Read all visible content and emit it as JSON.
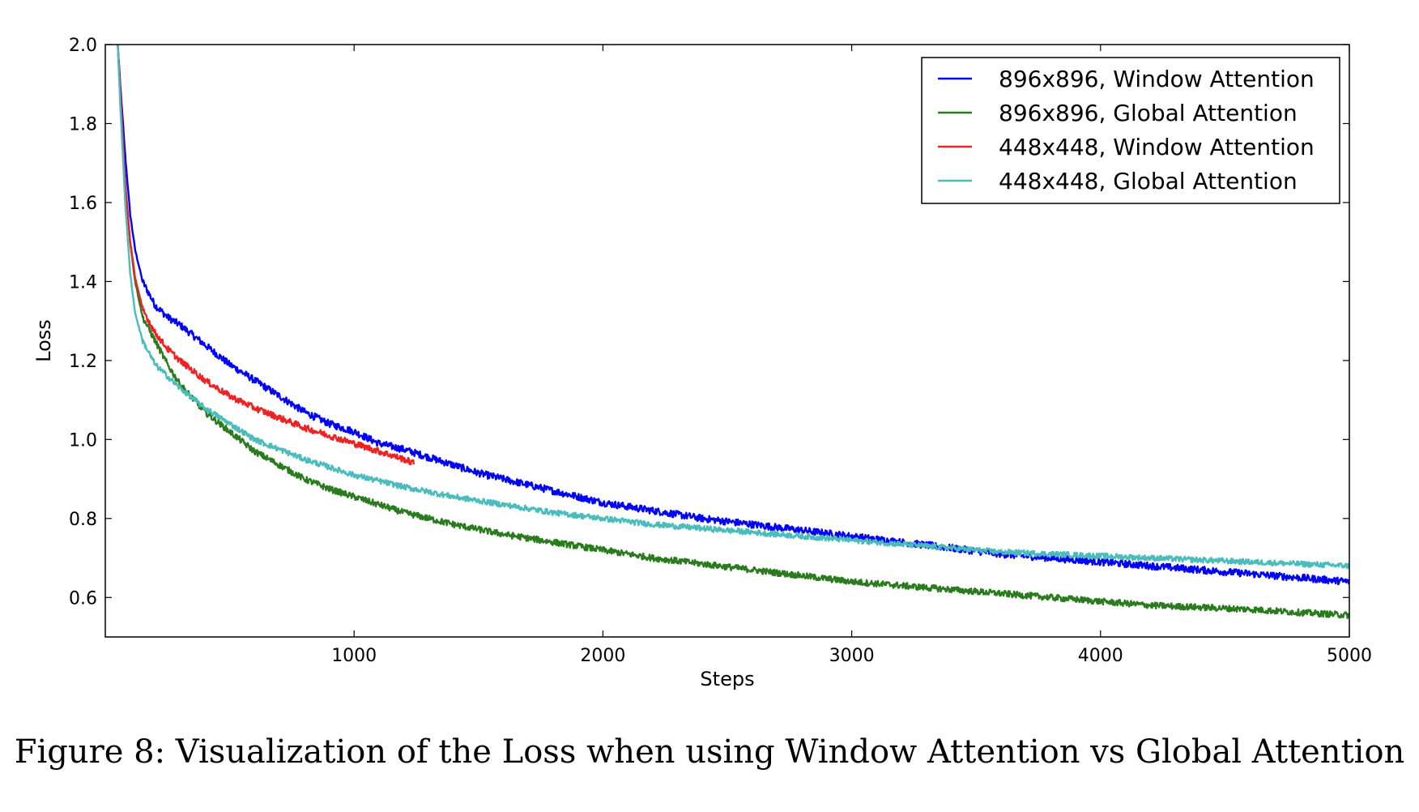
{
  "caption": "Figure 8: Visualization of the Loss when using Window Attention vs Global Attention",
  "chart_data": {
    "type": "line",
    "xlabel": "Steps",
    "ylabel": "Loss",
    "xlim": [
      0,
      5000
    ],
    "ylim": [
      0.5,
      2.0
    ],
    "xticks": [
      1000,
      2000,
      3000,
      4000,
      5000
    ],
    "yticks": [
      0.6,
      0.8,
      1.0,
      1.2,
      1.4,
      1.6,
      1.8,
      2.0
    ],
    "ytick_labels": [
      "0.6",
      "0.8",
      "1.0",
      "1.2",
      "1.4",
      "1.6",
      "1.8",
      "2.0"
    ],
    "legend_position": "top-right",
    "series": [
      {
        "name": "896x896, Window Attention",
        "color": "#0000ff",
        "noise": 0.009,
        "x": [
          50,
          60,
          80,
          100,
          120,
          150,
          200,
          250,
          300,
          400,
          500,
          600,
          700,
          800,
          900,
          1000,
          1100,
          1200,
          1300,
          1400,
          1500,
          1600,
          1700,
          1800,
          1900,
          2000,
          2200,
          2400,
          2600,
          2800,
          3000,
          3200,
          3400,
          3600,
          3800,
          4000,
          4200,
          4400,
          4600,
          4800,
          5000
        ],
        "y": [
          2.0,
          1.9,
          1.72,
          1.57,
          1.48,
          1.4,
          1.34,
          1.31,
          1.29,
          1.24,
          1.19,
          1.15,
          1.11,
          1.07,
          1.04,
          1.02,
          0.99,
          0.975,
          0.955,
          0.935,
          0.915,
          0.9,
          0.885,
          0.87,
          0.855,
          0.84,
          0.82,
          0.8,
          0.785,
          0.77,
          0.755,
          0.74,
          0.725,
          0.71,
          0.7,
          0.69,
          0.68,
          0.67,
          0.66,
          0.65,
          0.64
        ]
      },
      {
        "name": "896x896, Global Attention",
        "color": "#2a7b1e",
        "noise": 0.008,
        "x": [
          50,
          60,
          80,
          100,
          120,
          150,
          200,
          250,
          300,
          400,
          500,
          600,
          700,
          800,
          900,
          1000,
          1200,
          1400,
          1600,
          1800,
          2000,
          2200,
          2400,
          2600,
          2800,
          3000,
          3200,
          3400,
          3600,
          3800,
          4000,
          4200,
          4400,
          4600,
          4800,
          5000
        ],
        "y": [
          2.0,
          1.88,
          1.65,
          1.5,
          1.4,
          1.31,
          1.25,
          1.19,
          1.14,
          1.07,
          1.02,
          0.97,
          0.935,
          0.9,
          0.875,
          0.855,
          0.815,
          0.785,
          0.76,
          0.74,
          0.72,
          0.7,
          0.685,
          0.67,
          0.655,
          0.64,
          0.63,
          0.62,
          0.61,
          0.6,
          0.59,
          0.58,
          0.575,
          0.57,
          0.562,
          0.555
        ]
      },
      {
        "name": "448x448, Window Attention",
        "color": "#ee2222",
        "noise": 0.008,
        "x": [
          50,
          60,
          80,
          100,
          120,
          150,
          200,
          250,
          300,
          400,
          500,
          600,
          700,
          800,
          900,
          1000,
          1100,
          1200,
          1240
        ],
        "y": [
          2.0,
          1.88,
          1.65,
          1.5,
          1.41,
          1.33,
          1.27,
          1.23,
          1.2,
          1.15,
          1.11,
          1.08,
          1.055,
          1.03,
          1.01,
          0.99,
          0.97,
          0.95,
          0.94
        ]
      },
      {
        "name": "448x448, Global Attention",
        "color": "#4bbcbc",
        "noise": 0.007,
        "x": [
          50,
          60,
          80,
          100,
          120,
          150,
          200,
          250,
          300,
          400,
          500,
          600,
          700,
          800,
          900,
          1000,
          1200,
          1400,
          1600,
          1800,
          2000,
          2200,
          2400,
          2600,
          2800,
          3000,
          3200,
          3400,
          3600,
          3800,
          4000,
          4200,
          4400,
          4600,
          4800,
          5000
        ],
        "y": [
          2.0,
          1.85,
          1.6,
          1.42,
          1.32,
          1.25,
          1.19,
          1.16,
          1.13,
          1.08,
          1.04,
          1.0,
          0.975,
          0.95,
          0.93,
          0.91,
          0.88,
          0.855,
          0.835,
          0.815,
          0.8,
          0.785,
          0.775,
          0.765,
          0.755,
          0.745,
          0.735,
          0.725,
          0.715,
          0.71,
          0.705,
          0.7,
          0.695,
          0.69,
          0.685,
          0.68
        ]
      }
    ]
  }
}
